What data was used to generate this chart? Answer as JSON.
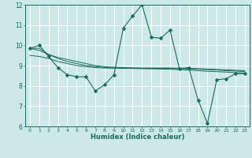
{
  "title": "",
  "xlabel": "Humidex (Indice chaleur)",
  "xlim": [
    -0.5,
    23.5
  ],
  "ylim": [
    6,
    12
  ],
  "yticks": [
    6,
    7,
    8,
    9,
    10,
    11,
    12
  ],
  "xticks": [
    0,
    1,
    2,
    3,
    4,
    5,
    6,
    7,
    8,
    9,
    10,
    11,
    12,
    13,
    14,
    15,
    16,
    17,
    18,
    19,
    20,
    21,
    22,
    23
  ],
  "bg_color": "#cce8e8",
  "line_color": "#1a6b5a",
  "grid_color": "#ffffff",
  "lines": [
    {
      "x": [
        0,
        1,
        2,
        3,
        4,
        5,
        6,
        7,
        8,
        9,
        10,
        11,
        12,
        13,
        14,
        15,
        16,
        17,
        18,
        19,
        20,
        21,
        22,
        23
      ],
      "y": [
        9.85,
        10.0,
        9.45,
        8.9,
        8.55,
        8.45,
        8.45,
        7.75,
        8.05,
        8.55,
        10.85,
        11.45,
        12.0,
        10.4,
        10.35,
        10.75,
        8.85,
        8.9,
        7.3,
        6.15,
        8.3,
        8.35,
        8.6,
        8.6
      ],
      "has_marker": true,
      "markersize": 2.5
    },
    {
      "x": [
        0,
        1,
        2,
        3,
        4,
        5,
        6,
        7,
        8,
        9,
        10,
        11,
        12,
        13,
        14,
        15,
        16,
        17,
        18,
        19,
        20,
        21,
        22,
        23
      ],
      "y": [
        9.85,
        9.75,
        9.55,
        9.35,
        9.2,
        9.1,
        9.0,
        8.95,
        8.9,
        8.88,
        8.87,
        8.86,
        8.85,
        8.84,
        8.83,
        8.82,
        8.8,
        8.78,
        8.75,
        8.72,
        8.7,
        8.68,
        8.65,
        8.63
      ],
      "has_marker": false,
      "markersize": 0
    },
    {
      "x": [
        0,
        1,
        2,
        3,
        4,
        5,
        6,
        7,
        8,
        9,
        10,
        11,
        12,
        13,
        14,
        15,
        16,
        17,
        18,
        19,
        20,
        21,
        22,
        23
      ],
      "y": [
        9.5,
        9.45,
        9.35,
        9.2,
        9.1,
        9.0,
        8.95,
        8.9,
        8.88,
        8.87,
        8.86,
        8.86,
        8.86,
        8.86,
        8.86,
        8.86,
        8.85,
        8.84,
        8.82,
        8.8,
        8.78,
        8.75,
        8.73,
        8.7
      ],
      "has_marker": false,
      "markersize": 0
    },
    {
      "x": [
        0,
        1,
        2,
        3,
        4,
        5,
        6,
        7,
        8,
        9,
        10,
        11,
        12,
        13,
        14,
        15,
        16,
        17,
        18,
        19,
        20,
        21,
        22,
        23
      ],
      "y": [
        9.85,
        9.85,
        9.55,
        9.4,
        9.3,
        9.2,
        9.1,
        9.0,
        8.95,
        8.92,
        8.9,
        8.89,
        8.88,
        8.88,
        8.88,
        8.88,
        8.87,
        8.86,
        8.85,
        8.83,
        8.81,
        8.79,
        8.77,
        8.75
      ],
      "has_marker": false,
      "markersize": 0
    }
  ]
}
